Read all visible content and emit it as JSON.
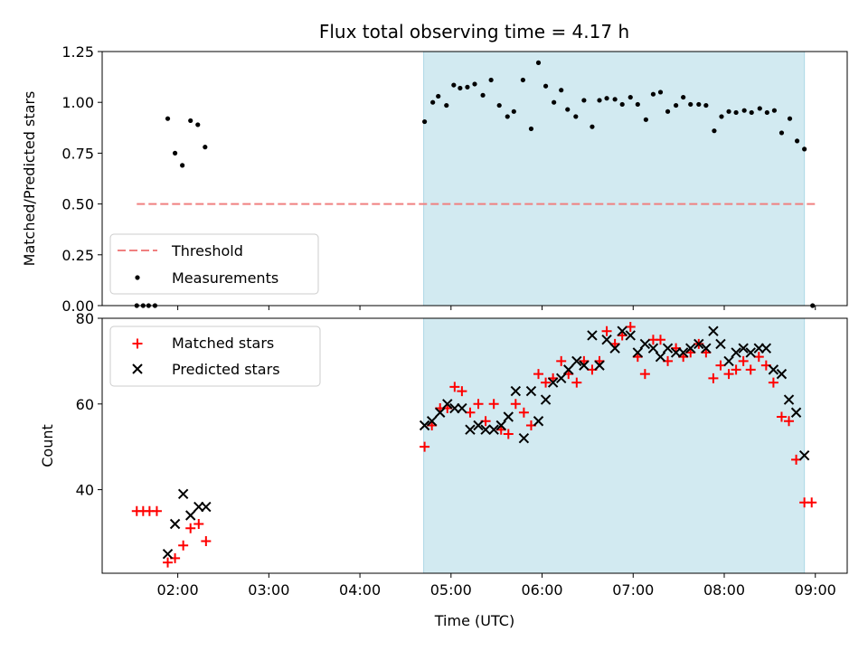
{
  "figure": {
    "title": "Flux total observing time = 4.17 h",
    "xlabel": "Time (UTC)",
    "x_ticks": [
      "02:00",
      "03:00",
      "04:00",
      "05:00",
      "06:00",
      "07:00",
      "08:00",
      "09:00"
    ],
    "x_tick_hours": [
      2,
      3,
      4,
      5,
      6,
      7,
      8,
      9
    ],
    "x_range_hours": [
      1.17,
      9.35
    ],
    "shaded_interval_hours": [
      4.7,
      8.88
    ]
  },
  "colors": {
    "shade": "#add8e6",
    "threshold": "#f08080",
    "measurements": "#000000",
    "matched": "#ff0000",
    "predicted": "#000000"
  },
  "chart_data": [
    {
      "type": "scatter",
      "panel": "top",
      "ylabel": "Matched/Predicted stars",
      "ylim": [
        0,
        1.25
      ],
      "y_ticks": [
        "0.00",
        "0.25",
        "0.50",
        "0.75",
        "1.00",
        "1.25"
      ],
      "y_tick_values": [
        0,
        0.25,
        0.5,
        0.75,
        1.0,
        1.25
      ],
      "legend_position": "lower-left",
      "threshold": {
        "name": "Threshold",
        "value": 0.5,
        "x_range_hours": [
          1.55,
          9.0
        ]
      },
      "series": [
        {
          "name": "Measurements",
          "marker": "dot",
          "points": [
            [
              1.55,
              0.0
            ],
            [
              1.62,
              0.0
            ],
            [
              1.68,
              0.0
            ],
            [
              1.75,
              0.0
            ],
            [
              1.89,
              0.92
            ],
            [
              1.97,
              0.75
            ],
            [
              2.05,
              0.69
            ],
            [
              2.14,
              0.91
            ],
            [
              2.22,
              0.89
            ],
            [
              2.3,
              0.78
            ],
            [
              4.71,
              0.905
            ],
            [
              4.8,
              1.0
            ],
            [
              4.86,
              1.03
            ],
            [
              4.95,
              0.985
            ],
            [
              5.03,
              1.085
            ],
            [
              5.1,
              1.07
            ],
            [
              5.18,
              1.075
            ],
            [
              5.26,
              1.09
            ],
            [
              5.35,
              1.035
            ],
            [
              5.44,
              1.11
            ],
            [
              5.53,
              0.985
            ],
            [
              5.62,
              0.93
            ],
            [
              5.69,
              0.955
            ],
            [
              5.79,
              1.11
            ],
            [
              5.88,
              0.87
            ],
            [
              5.96,
              1.195
            ],
            [
              6.04,
              1.08
            ],
            [
              6.13,
              1.0
            ],
            [
              6.21,
              1.06
            ],
            [
              6.28,
              0.965
            ],
            [
              6.37,
              0.93
            ],
            [
              6.46,
              1.01
            ],
            [
              6.55,
              0.88
            ],
            [
              6.63,
              1.01
            ],
            [
              6.71,
              1.02
            ],
            [
              6.8,
              1.015
            ],
            [
              6.88,
              0.99
            ],
            [
              6.97,
              1.025
            ],
            [
              7.05,
              0.99
            ],
            [
              7.14,
              0.915
            ],
            [
              7.22,
              1.04
            ],
            [
              7.3,
              1.05
            ],
            [
              7.38,
              0.955
            ],
            [
              7.47,
              0.985
            ],
            [
              7.55,
              1.025
            ],
            [
              7.63,
              0.99
            ],
            [
              7.72,
              0.99
            ],
            [
              7.8,
              0.985
            ],
            [
              7.89,
              0.86
            ],
            [
              7.97,
              0.93
            ],
            [
              8.05,
              0.955
            ],
            [
              8.13,
              0.95
            ],
            [
              8.22,
              0.96
            ],
            [
              8.3,
              0.95
            ],
            [
              8.39,
              0.97
            ],
            [
              8.47,
              0.95
            ],
            [
              8.55,
              0.96
            ],
            [
              8.63,
              0.85
            ],
            [
              8.72,
              0.92
            ],
            [
              8.8,
              0.81
            ],
            [
              8.88,
              0.77
            ],
            [
              8.97,
              0.0
            ]
          ]
        }
      ]
    },
    {
      "type": "scatter",
      "panel": "bottom",
      "ylabel": "Count",
      "ylim": [
        20.5,
        80
      ],
      "y_ticks": [
        "40",
        "60",
        "80"
      ],
      "y_tick_values": [
        40,
        60,
        80
      ],
      "legend_position": "upper-left",
      "series": [
        {
          "name": "Matched stars",
          "marker": "plus",
          "points": [
            [
              1.55,
              35
            ],
            [
              1.62,
              35
            ],
            [
              1.69,
              35
            ],
            [
              1.77,
              35
            ],
            [
              1.89,
              23
            ],
            [
              1.97,
              24
            ],
            [
              2.06,
              27
            ],
            [
              2.14,
              31
            ],
            [
              2.23,
              32
            ],
            [
              2.31,
              28
            ],
            [
              4.71,
              50
            ],
            [
              4.79,
              55
            ],
            [
              4.88,
              59
            ],
            [
              4.96,
              59
            ],
            [
              5.04,
              64
            ],
            [
              5.12,
              63
            ],
            [
              5.21,
              58
            ],
            [
              5.3,
              60
            ],
            [
              5.38,
              56
            ],
            [
              5.47,
              60
            ],
            [
              5.55,
              54
            ],
            [
              5.63,
              53
            ],
            [
              5.71,
              60
            ],
            [
              5.8,
              58
            ],
            [
              5.88,
              55
            ],
            [
              5.96,
              67
            ],
            [
              6.04,
              65
            ],
            [
              6.12,
              66
            ],
            [
              6.21,
              70
            ],
            [
              6.29,
              67
            ],
            [
              6.38,
              65
            ],
            [
              6.46,
              70
            ],
            [
              6.55,
              68
            ],
            [
              6.63,
              70
            ],
            [
              6.71,
              77
            ],
            [
              6.8,
              74
            ],
            [
              6.88,
              76
            ],
            [
              6.97,
              78
            ],
            [
              7.05,
              71
            ],
            [
              7.13,
              67
            ],
            [
              7.22,
              75
            ],
            [
              7.3,
              75
            ],
            [
              7.38,
              70
            ],
            [
              7.47,
              73
            ],
            [
              7.55,
              71
            ],
            [
              7.63,
              72
            ],
            [
              7.72,
              74
            ],
            [
              7.8,
              72
            ],
            [
              7.88,
              66
            ],
            [
              7.96,
              69
            ],
            [
              8.05,
              67
            ],
            [
              8.13,
              68
            ],
            [
              8.21,
              70
            ],
            [
              8.29,
              68
            ],
            [
              8.38,
              71
            ],
            [
              8.46,
              69
            ],
            [
              8.54,
              65
            ],
            [
              8.63,
              57
            ],
            [
              8.71,
              56
            ],
            [
              8.79,
              47
            ],
            [
              8.88,
              37
            ],
            [
              8.96,
              37
            ]
          ]
        },
        {
          "name": "Predicted stars",
          "marker": "x",
          "points": [
            [
              1.89,
              25
            ],
            [
              1.97,
              32
            ],
            [
              2.06,
              39
            ],
            [
              2.14,
              34
            ],
            [
              2.23,
              36
            ],
            [
              2.31,
              36
            ],
            [
              4.71,
              55
            ],
            [
              4.79,
              56
            ],
            [
              4.88,
              58
            ],
            [
              4.96,
              60
            ],
            [
              5.04,
              59
            ],
            [
              5.12,
              59
            ],
            [
              5.21,
              54
            ],
            [
              5.3,
              55
            ],
            [
              5.38,
              54
            ],
            [
              5.47,
              54
            ],
            [
              5.55,
              55
            ],
            [
              5.63,
              57
            ],
            [
              5.71,
              63
            ],
            [
              5.8,
              52
            ],
            [
              5.88,
              63
            ],
            [
              5.96,
              56
            ],
            [
              6.04,
              61
            ],
            [
              6.12,
              65
            ],
            [
              6.21,
              66
            ],
            [
              6.29,
              68
            ],
            [
              6.38,
              70
            ],
            [
              6.46,
              69
            ],
            [
              6.55,
              76
            ],
            [
              6.63,
              69
            ],
            [
              6.71,
              75
            ],
            [
              6.8,
              73
            ],
            [
              6.88,
              77
            ],
            [
              6.97,
              76
            ],
            [
              7.05,
              72
            ],
            [
              7.13,
              74
            ],
            [
              7.22,
              73
            ],
            [
              7.3,
              71
            ],
            [
              7.38,
              73
            ],
            [
              7.47,
              72
            ],
            [
              7.55,
              72
            ],
            [
              7.63,
              73
            ],
            [
              7.72,
              74
            ],
            [
              7.8,
              73
            ],
            [
              7.88,
              77
            ],
            [
              7.96,
              74
            ],
            [
              8.05,
              70
            ],
            [
              8.13,
              72
            ],
            [
              8.21,
              73
            ],
            [
              8.29,
              72
            ],
            [
              8.38,
              73
            ],
            [
              8.46,
              73
            ],
            [
              8.54,
              68
            ],
            [
              8.63,
              67
            ],
            [
              8.71,
              61
            ],
            [
              8.79,
              58
            ],
            [
              8.88,
              48
            ]
          ]
        }
      ]
    }
  ]
}
